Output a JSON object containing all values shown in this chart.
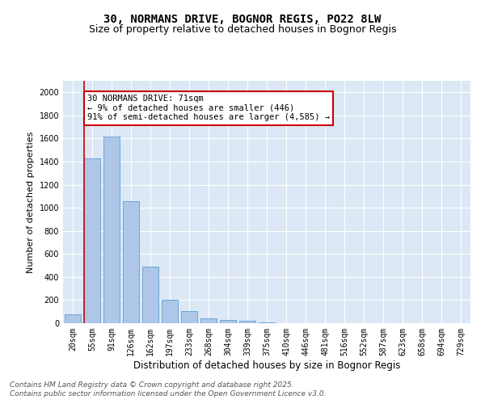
{
  "title_line1": "30, NORMANS DRIVE, BOGNOR REGIS, PO22 8LW",
  "title_line2": "Size of property relative to detached houses in Bognor Regis",
  "xlabel": "Distribution of detached houses by size in Bognor Regis",
  "ylabel": "Number of detached properties",
  "categories": [
    "20sqm",
    "55sqm",
    "91sqm",
    "126sqm",
    "162sqm",
    "197sqm",
    "233sqm",
    "268sqm",
    "304sqm",
    "339sqm",
    "375sqm",
    "410sqm",
    "446sqm",
    "481sqm",
    "516sqm",
    "552sqm",
    "587sqm",
    "623sqm",
    "658sqm",
    "694sqm",
    "729sqm"
  ],
  "values": [
    80,
    1430,
    1620,
    1060,
    490,
    205,
    105,
    42,
    28,
    18,
    10,
    0,
    0,
    0,
    0,
    0,
    0,
    0,
    0,
    0,
    0
  ],
  "bar_color": "#aec6e8",
  "bar_edge_color": "#5a9fd4",
  "vline_color": "#cc0000",
  "annotation_text": "30 NORMANS DRIVE: 71sqm\n← 9% of detached houses are smaller (446)\n91% of semi-detached houses are larger (4,585) →",
  "annotation_box_color": "#ffffff",
  "annotation_box_edge": "#cc0000",
  "ylim": [
    0,
    2100
  ],
  "yticks": [
    0,
    200,
    400,
    600,
    800,
    1000,
    1200,
    1400,
    1600,
    1800,
    2000
  ],
  "background_color": "#dce8f5",
  "footer_line1": "Contains HM Land Registry data © Crown copyright and database right 2025.",
  "footer_line2": "Contains public sector information licensed under the Open Government Licence v3.0.",
  "title_fontsize": 10,
  "subtitle_fontsize": 9,
  "tick_fontsize": 7,
  "xlabel_fontsize": 8.5,
  "ylabel_fontsize": 8,
  "annotation_fontsize": 7.5,
  "footer_fontsize": 6.5
}
